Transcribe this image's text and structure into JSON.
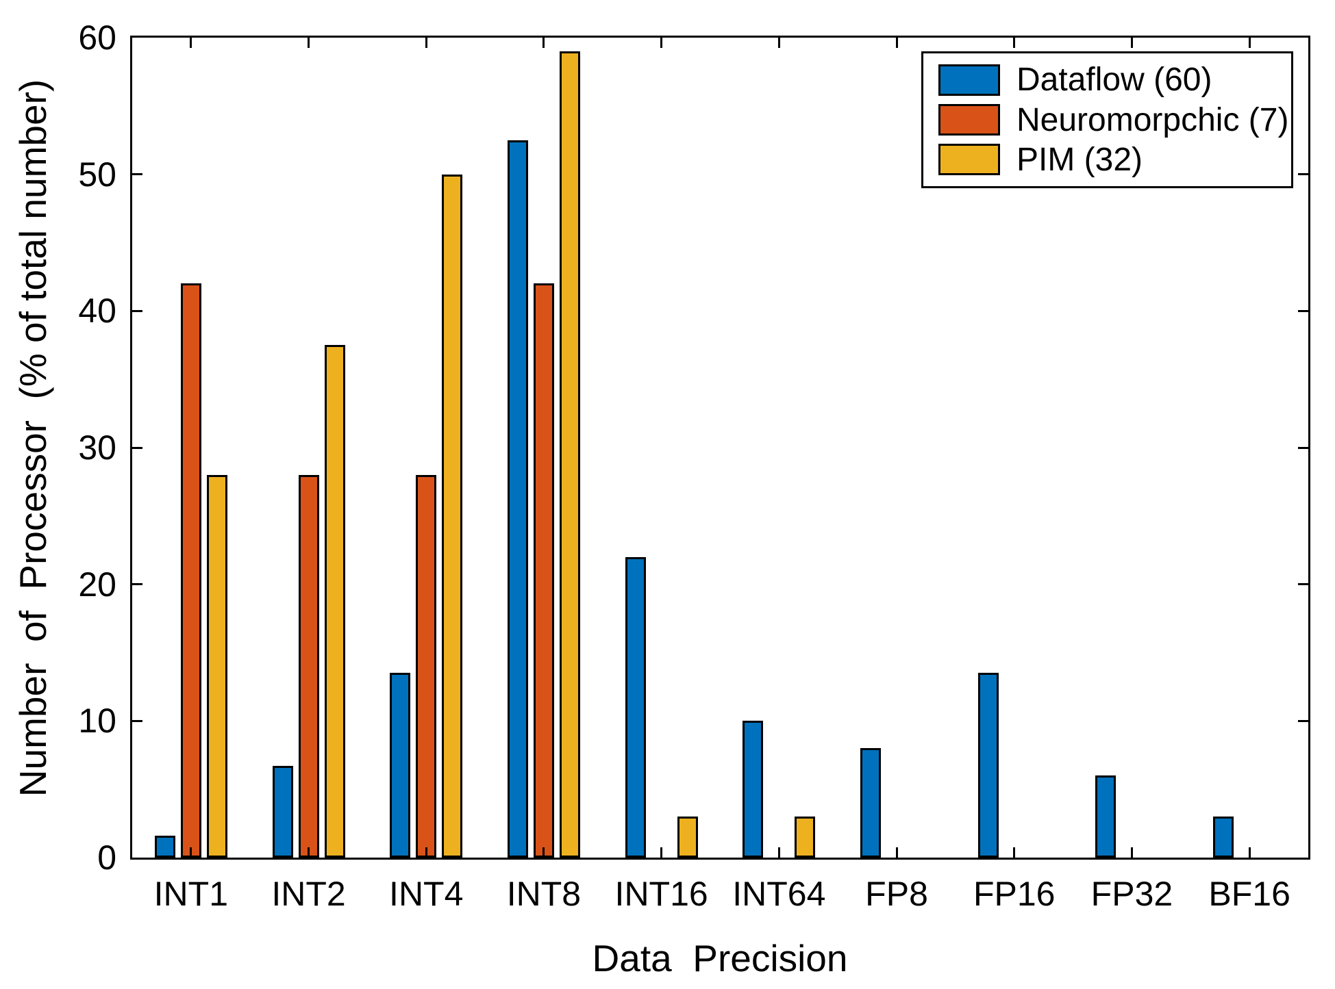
{
  "figure": {
    "background": "#ffffff",
    "axis_color": "#000000"
  },
  "chart_data": {
    "type": "bar",
    "title": "",
    "xlabel": "Data  Precision",
    "ylabel": "Number  of  Processor  (% of total number)",
    "categories": [
      "INT1",
      "INT2",
      "INT4",
      "INT8",
      "INT16",
      "INT64",
      "FP8",
      "FP16",
      "FP32",
      "BF16"
    ],
    "series": [
      {
        "name": "Dataflow (60)",
        "color": "#0072BD",
        "values": [
          1.6,
          6.7,
          13.5,
          52.5,
          22,
          10,
          8,
          13.5,
          6,
          3
        ]
      },
      {
        "name": "Neuromorpchic (7)",
        "color": "#D95319",
        "values": [
          42,
          28,
          28,
          42,
          0,
          0,
          0,
          0,
          0,
          0
        ]
      },
      {
        "name": "PIM (32)",
        "color": "#EDB120",
        "values": [
          28,
          37.5,
          50,
          59,
          3,
          3,
          0,
          0,
          0,
          0
        ]
      }
    ],
    "ylim": [
      0,
      60
    ],
    "yticks": [
      0,
      10,
      20,
      30,
      40,
      50,
      60
    ],
    "grid": false,
    "legend_position": "top-right",
    "bar_edge_color": "#000000"
  }
}
